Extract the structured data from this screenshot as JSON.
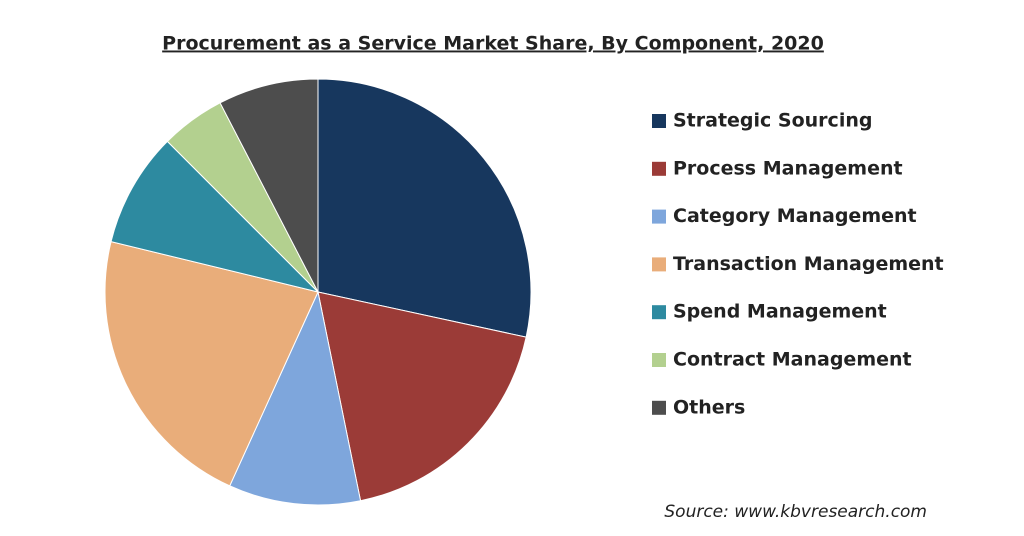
{
  "chart_data": {
    "type": "pie",
    "title": "Procurement as a Service Market Share, By Component, 2020",
    "categories": [
      "Strategic Sourcing",
      "Process Management",
      "Category Management",
      "Transaction Management",
      "Spend Management",
      "Contract Management",
      "Others"
    ],
    "values": [
      28.4,
      18.4,
      10.0,
      22.0,
      8.7,
      4.9,
      7.6
    ],
    "colors": [
      "#17375e",
      "#9b3b37",
      "#7ea6dc",
      "#e9ad7a",
      "#2d8aa0",
      "#b3d08f",
      "#4d4d4d"
    ],
    "legend": "right",
    "source": "Source: www.kbvresearch.com"
  }
}
